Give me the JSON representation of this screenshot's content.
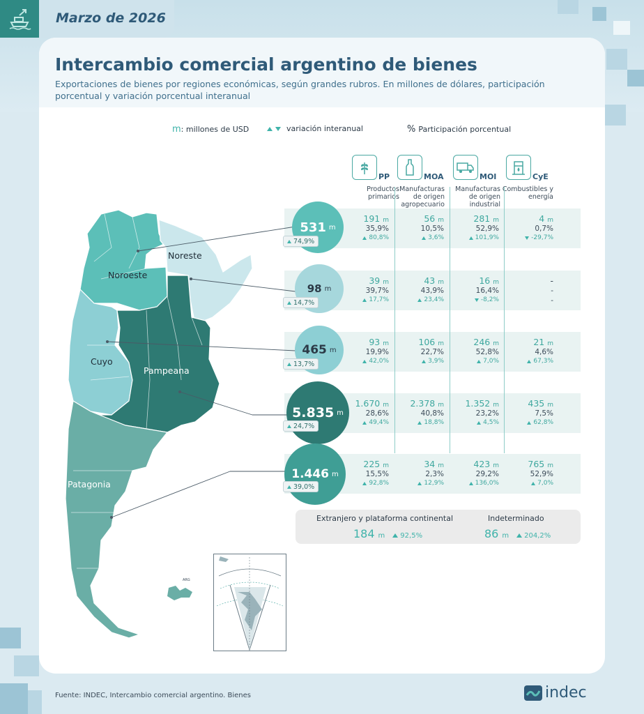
{
  "header": {
    "date": "Marzo de 2026"
  },
  "title": "Intercambio comercial argentino de bienes",
  "subtitle": "Exportaciones de bienes por regiones económicas, según grandes rubros. En millones de dólares, participación porcentual y variación porcentual interanual",
  "legend": {
    "m_symbol": "m",
    "m_label": ": millones de USD",
    "var_label": "variación interanual",
    "pct_symbol": "%",
    "pct_label": "Participación porcentual"
  },
  "unit": "m",
  "categories": [
    {
      "abbr": "PP",
      "name": "Productos primarios",
      "icon": "wheat-icon"
    },
    {
      "abbr": "MOA",
      "name": "Manufacturas de origen agropecuario",
      "icon": "bottle-icon"
    },
    {
      "abbr": "MOI",
      "name": "Manufacturas de origen industrial",
      "icon": "truck-icon"
    },
    {
      "abbr": "CyE",
      "name": "Combustibles y energía",
      "icon": "oil-pump-icon"
    }
  ],
  "regions": [
    {
      "name": "Noroeste",
      "total": "531",
      "total_var": "74,9%",
      "color": "#5cbfb8",
      "cells": [
        {
          "value": "191",
          "pct": "35,9%",
          "var": "80,8%",
          "dir": "up"
        },
        {
          "value": "56",
          "pct": "10,5%",
          "var": "3,6%",
          "dir": "up"
        },
        {
          "value": "281",
          "pct": "52,9%",
          "var": "101,9%",
          "dir": "up"
        },
        {
          "value": "4",
          "pct": "0,7%",
          "var": "-29,7%",
          "dir": "down"
        }
      ]
    },
    {
      "name": "Noreste",
      "total": "98",
      "total_var": "14,7%",
      "color": "#a6d7dc",
      "cells": [
        {
          "value": "39",
          "pct": "39,7%",
          "var": "17,7%",
          "dir": "up"
        },
        {
          "value": "43",
          "pct": "43,9%",
          "var": "23,4%",
          "dir": "up"
        },
        {
          "value": "16",
          "pct": "16,4%",
          "var": "-8,2%",
          "dir": "down"
        },
        {
          "value": "-",
          "pct": "-",
          "var": "-",
          "dir": "none"
        }
      ]
    },
    {
      "name": "Cuyo",
      "total": "465",
      "total_var": "13,7%",
      "color": "#8dcfd4",
      "cells": [
        {
          "value": "93",
          "pct": "19,9%",
          "var": "42,0%",
          "dir": "up"
        },
        {
          "value": "106",
          "pct": "22,7%",
          "var": "3,9%",
          "dir": "up"
        },
        {
          "value": "246",
          "pct": "52,8%",
          "var": "7,0%",
          "dir": "up"
        },
        {
          "value": "21",
          "pct": "4,6%",
          "var": "67,3%",
          "dir": "up"
        }
      ]
    },
    {
      "name": "Pampeana",
      "total": "5.835",
      "total_var": "24,7%",
      "color": "#2e7a73",
      "cells": [
        {
          "value": "1.670",
          "pct": "28,6%",
          "var": "49,4%",
          "dir": "up"
        },
        {
          "value": "2.378",
          "pct": "40,8%",
          "var": "18,8%",
          "dir": "up"
        },
        {
          "value": "1.352",
          "pct": "23,2%",
          "var": "4,5%",
          "dir": "up"
        },
        {
          "value": "435",
          "pct": "7,5%",
          "var": "62,8%",
          "dir": "up"
        }
      ]
    },
    {
      "name": "Patagonia",
      "total": "1.446",
      "total_var": "39,0%",
      "color": "#3f9e95",
      "cells": [
        {
          "value": "225",
          "pct": "15,5%",
          "var": "92,8%",
          "dir": "up"
        },
        {
          "value": "34",
          "pct": "2,3%",
          "var": "12,9%",
          "dir": "up"
        },
        {
          "value": "423",
          "pct": "29,2%",
          "var": "136,0%",
          "dir": "up"
        },
        {
          "value": "765",
          "pct": "52,9%",
          "var": "7,0%",
          "dir": "up"
        }
      ]
    }
  ],
  "extra": {
    "foreign_label": "Extranjero y plataforma continental",
    "foreign_value": "184",
    "foreign_var": "92,5%",
    "undetermined_label": "Indeterminado",
    "undetermined_value": "86",
    "undetermined_var": "204,2%"
  },
  "map": {
    "islands_label": "ARG"
  },
  "footer": {
    "source": "Fuente: INDEC, Intercambio comercial argentino. Bienes"
  },
  "logo": {
    "text": "indec"
  }
}
